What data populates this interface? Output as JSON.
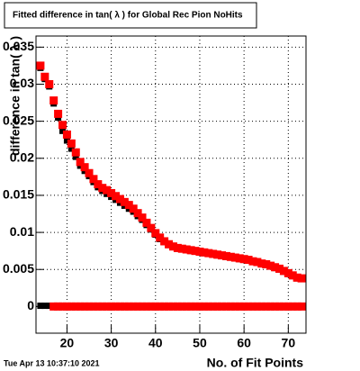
{
  "chart_data": {
    "type": "scatter",
    "title": "Fitted difference in tan( λ ) for Global Rec Pion NoHits",
    "y_label": "difference in tan( λ )",
    "x_label": "No. of Fit Points",
    "timestamp": "Tue Apr 13 10:37:10 2021",
    "xlim": [
      13,
      74
    ],
    "ylim": [
      -0.0036,
      0.0365
    ],
    "xticks": [
      20,
      30,
      40,
      50,
      60,
      70
    ],
    "yticks": [
      0,
      0.005,
      0.01,
      0.015,
      0.02,
      0.025,
      0.03,
      0.035
    ],
    "grid": true,
    "x": [
      14,
      15,
      16,
      17,
      18,
      19,
      20,
      21,
      22,
      23,
      24,
      25,
      26,
      27,
      28,
      29,
      30,
      31,
      32,
      33,
      34,
      35,
      36,
      37,
      38,
      39,
      40,
      41,
      42,
      43,
      44,
      45,
      46,
      47,
      48,
      49,
      50,
      51,
      52,
      53,
      54,
      55,
      56,
      57,
      58,
      59,
      60,
      61,
      62,
      63,
      64,
      65,
      66,
      67,
      68,
      69,
      70,
      71,
      72,
      73
    ],
    "series": [
      {
        "color": "#000000",
        "marker_size": 7,
        "values": [
          0.0322,
          0.0307,
          0.0297,
          0.0274,
          0.0255,
          0.0237,
          0.0224,
          0.0213,
          0.0202,
          0.019,
          0.0183,
          0.0176,
          0.0168,
          0.0161,
          0.0156,
          0.0152,
          0.0148,
          0.0144,
          0.014,
          0.0136,
          0.0132,
          0.0128,
          0.0122,
          0.0117,
          0.011,
          0.0104,
          0.0097,
          0.0091,
          0.0087,
          0.0083,
          0.008,
          0.0078,
          0.0077,
          0.0076,
          0.0075,
          0.0074,
          0.0073,
          0.0072,
          0.0071,
          0.007,
          0.0069,
          0.0068,
          0.0067,
          0.0066,
          0.0065,
          0.0064,
          0.0063,
          0.0062,
          0.006,
          0.0059,
          0.0057,
          0.0056,
          0.0054,
          0.0052,
          0.005,
          0.0047,
          0.0044,
          0.0041,
          0.0038,
          0.0037
        ]
      },
      {
        "color": "#000000",
        "marker_size": 7,
        "values": [
          0.0001,
          0.0001,
          0.0001,
          0.0001,
          0.0001,
          0.0001,
          0.0001,
          0.0001,
          0.0001,
          0.0001,
          0.0001,
          0.0001,
          0.0001,
          0.0001,
          0.0001,
          0.0001,
          0.0001,
          0.0001,
          0.0001,
          0.0001,
          0.0001,
          0.0001,
          0.0001,
          0.0001,
          0.0001,
          0.0001,
          0.0001,
          0.0001,
          0.0001,
          0.0001,
          0.0001,
          0.0001,
          0.0001,
          0.0001,
          0.0001,
          0.0001,
          0.0001,
          0.0001,
          0.0001,
          0.0001,
          0.0001,
          0.0001,
          0.0001,
          0.0001,
          0.0001,
          0.0001,
          0.0001,
          0.0001,
          0.0001,
          0.0001,
          0.0001,
          0.0001,
          0.0001,
          0.0001,
          0.0001,
          0.0001,
          0.0001,
          0.0001,
          0.0001,
          0.0001
        ]
      },
      {
        "color": "#ff0000",
        "marker_size": 9,
        "values": [
          0.0325,
          0.031,
          0.03,
          0.0278,
          0.026,
          0.0245,
          0.0232,
          0.022,
          0.0208,
          0.0195,
          0.0188,
          0.018,
          0.0172,
          0.0165,
          0.016,
          0.0157,
          0.0153,
          0.0149,
          0.0145,
          0.0141,
          0.0137,
          0.0132,
          0.0126,
          0.012,
          0.0113,
          0.0106,
          0.0099,
          0.0093,
          0.0088,
          0.0084,
          0.0081,
          0.0079,
          0.0078,
          0.0077,
          0.0076,
          0.0075,
          0.0074,
          0.0073,
          0.0072,
          0.0071,
          0.007,
          0.0069,
          0.0068,
          0.0067,
          0.0066,
          0.0065,
          0.0064,
          0.0063,
          0.0061,
          0.006,
          0.0058,
          0.0057,
          0.0055,
          0.0053,
          0.0051,
          0.0048,
          0.0045,
          0.0042,
          0.0039,
          0.0038
        ]
      },
      {
        "color": "#ff0000",
        "marker_size": 9,
        "values": [
          null,
          null,
          null,
          0,
          0,
          0,
          0,
          0,
          0,
          0,
          0,
          0,
          0,
          0,
          0,
          0,
          0,
          0,
          0,
          0,
          0,
          0,
          0,
          0,
          0,
          0,
          0,
          0,
          0,
          0,
          0,
          0,
          0,
          0,
          0,
          0,
          0,
          0,
          0,
          0,
          0,
          0,
          0,
          0,
          0,
          0,
          0,
          0,
          0,
          0,
          0,
          0,
          0,
          0,
          0,
          0,
          0,
          0,
          0,
          0
        ]
      }
    ]
  }
}
